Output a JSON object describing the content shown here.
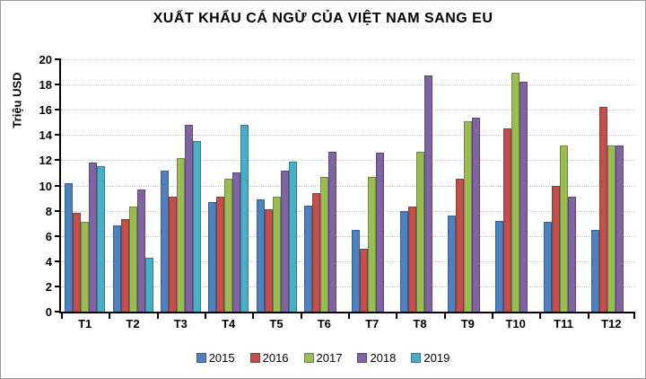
{
  "chart_data": {
    "type": "bar",
    "title": "XUẤT KHẨU CÁ NGỪ CỦA VIỆT NAM SANG EU",
    "ylabel": "Triệu USD",
    "xlabel": "",
    "categories": [
      "T1",
      "T2",
      "T3",
      "T4",
      "T5",
      "T6",
      "T7",
      "T8",
      "T9",
      "T10",
      "T11",
      "T12"
    ],
    "series": [
      {
        "name": "2015",
        "color": "#4F81BD",
        "values": [
          10.2,
          6.8,
          11.2,
          8.7,
          8.9,
          8.4,
          6.5,
          8.0,
          7.6,
          7.2,
          7.1,
          6.5
        ]
      },
      {
        "name": "2016",
        "color": "#C0504D",
        "values": [
          7.8,
          7.3,
          9.1,
          9.1,
          8.1,
          9.4,
          5.0,
          8.3,
          10.5,
          14.5,
          10.0,
          16.2
        ]
      },
      {
        "name": "2017",
        "color": "#9BBB59",
        "values": [
          7.1,
          8.3,
          12.2,
          10.5,
          9.1,
          10.7,
          10.7,
          12.7,
          15.1,
          18.9,
          13.2,
          13.2
        ]
      },
      {
        "name": "2018",
        "color": "#8064A2",
        "values": [
          11.8,
          9.7,
          14.8,
          11.0,
          11.2,
          12.7,
          12.6,
          18.7,
          15.4,
          18.2,
          9.1,
          13.2
        ]
      },
      {
        "name": "2019",
        "color": "#4BACC6",
        "values": [
          11.5,
          4.3,
          13.5,
          14.8,
          11.9,
          null,
          null,
          null,
          null,
          null,
          null,
          null
        ]
      }
    ],
    "ylim": [
      0,
      20
    ],
    "ytick_step": 2,
    "grid": "horizontal-dotted",
    "legend_position": "bottom"
  }
}
